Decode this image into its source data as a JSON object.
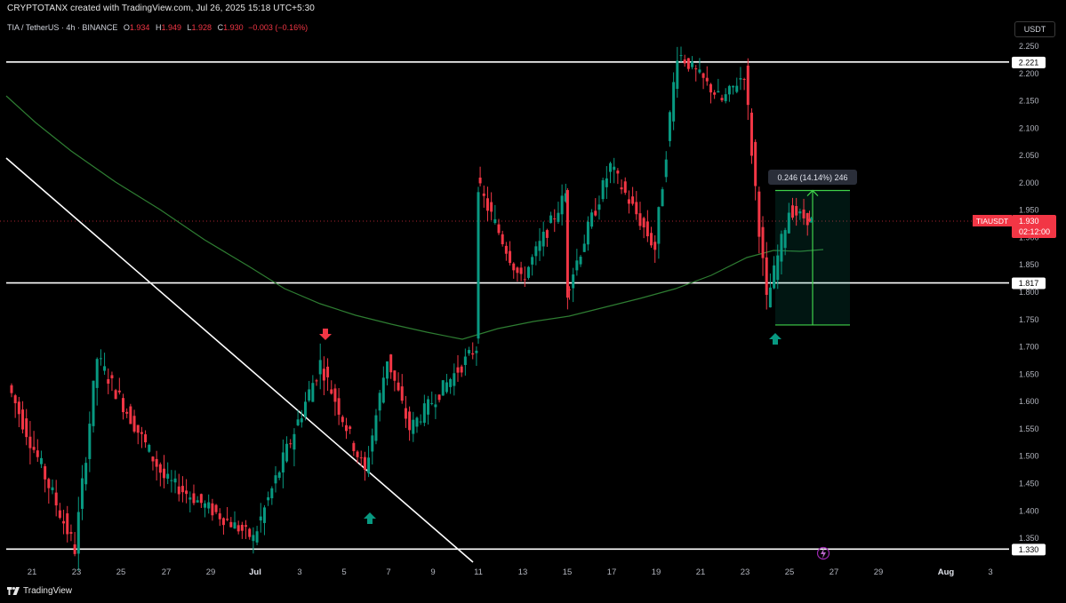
{
  "header": {
    "attribution": "CRYPTOTANX created with TradingView.com, Jul 26, 2025 15:18 UTC+5:30"
  },
  "legend": {
    "symbol": "TIA / TetherUS · 4h · BINANCE",
    "open_label": "O",
    "open": "1.934",
    "high_label": "H",
    "high": "1.949",
    "low_label": "L",
    "low": "1.928",
    "close_label": "C",
    "close": "1.930",
    "change": "−0.003 (−0.16%)"
  },
  "currency_button": "USDT",
  "price_axis": {
    "ticks": [
      "2.250",
      "2.200",
      "2.150",
      "2.100",
      "2.050",
      "2.000",
      "1.950",
      "1.900",
      "1.850",
      "1.800",
      "1.750",
      "1.700",
      "1.650",
      "1.600",
      "1.550",
      "1.500",
      "1.450",
      "1.400",
      "1.350"
    ],
    "tick_values": [
      2.25,
      2.2,
      2.15,
      2.1,
      2.05,
      2.0,
      1.95,
      1.9,
      1.85,
      1.8,
      1.75,
      1.7,
      1.65,
      1.6,
      1.55,
      1.5,
      1.45,
      1.4,
      1.35
    ],
    "range": [
      1.32,
      2.28
    ],
    "levels": [
      {
        "label": "2.221",
        "value": 2.221
      },
      {
        "label": "1.817",
        "value": 1.817
      },
      {
        "label": "1.330",
        "value": 1.33
      }
    ],
    "symbol_tag": "TIAUSDT",
    "last_price": "1.930",
    "last_value": 1.93,
    "countdown": "02:12:00"
  },
  "time_axis": {
    "labels": [
      "21",
      "23",
      "25",
      "27",
      "29",
      "Jul",
      "3",
      "5",
      "7",
      "9",
      "11",
      "13",
      "15",
      "17",
      "19",
      "21",
      "23",
      "25",
      "27",
      "29",
      "Aug",
      "3"
    ],
    "bold_labels": [
      "Jul",
      "Aug"
    ]
  },
  "measure": {
    "label": "0.246 (14.14%) 246",
    "from": 1.74,
    "to": 1.986
  },
  "markers": [
    {
      "type": "sell-arrow",
      "date": "Jul 4",
      "color": "#f23645"
    },
    {
      "type": "buy-arrow",
      "date": "Jul 6",
      "color": "#089981"
    },
    {
      "type": "buy-arrow",
      "date": "Jul 24",
      "color": "#089981"
    }
  ],
  "colors": {
    "up": "#089981",
    "down": "#f23645",
    "ma": "#2e7d32",
    "level": "#ffffff",
    "accent": "#f23645"
  },
  "footer": {
    "brand": "TradingView"
  },
  "chart_data": {
    "type": "candlestick",
    "timeframe": "4h",
    "ylim": [
      1.32,
      2.28
    ],
    "key_points": [
      {
        "date": "Jun 20",
        "price": 1.63
      },
      {
        "date": "Jun 23",
        "price": 1.33
      },
      {
        "date": "Jun 24",
        "price": 1.68
      },
      {
        "date": "Jun 27",
        "price": 1.46
      },
      {
        "date": "Jul 1",
        "price": 1.35
      },
      {
        "date": "Jul 4",
        "price": 1.67
      },
      {
        "date": "Jul 6",
        "price": 1.47
      },
      {
        "date": "Jul 7",
        "price": 1.68
      },
      {
        "date": "Jul 8",
        "price": 1.55
      },
      {
        "date": "Jul 11",
        "price": 1.7
      },
      {
        "date": "Jul 11",
        "price": 2.0
      },
      {
        "date": "Jul 13",
        "price": 1.82
      },
      {
        "date": "Jul 15",
        "price": 1.98
      },
      {
        "date": "Jul 15",
        "price": 1.8
      },
      {
        "date": "Jul 17",
        "price": 2.03
      },
      {
        "date": "Jul 19",
        "price": 1.88
      },
      {
        "date": "Jul 20",
        "price": 2.24
      },
      {
        "date": "Jul 22",
        "price": 2.15
      },
      {
        "date": "Jul 23",
        "price": 2.2
      },
      {
        "date": "Jul 24",
        "price": 1.78
      },
      {
        "date": "Jul 25",
        "price": 1.95
      },
      {
        "date": "Jul 26",
        "price": 1.93
      }
    ]
  }
}
